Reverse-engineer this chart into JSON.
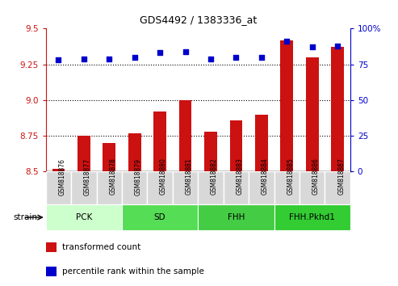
{
  "title": "GDS4492 / 1383336_at",
  "samples": [
    "GSM818876",
    "GSM818877",
    "GSM818878",
    "GSM818879",
    "GSM818880",
    "GSM818881",
    "GSM818882",
    "GSM818883",
    "GSM818884",
    "GSM818885",
    "GSM818886",
    "GSM818887"
  ],
  "red_values": [
    8.52,
    8.75,
    8.7,
    8.77,
    8.92,
    9.0,
    8.78,
    8.86,
    8.9,
    9.42,
    9.3,
    9.37
  ],
  "blue_values": [
    78,
    79,
    79,
    80,
    83,
    84,
    79,
    80,
    80,
    91,
    87,
    88
  ],
  "ylim_left": [
    8.5,
    9.5
  ],
  "ylim_right": [
    0,
    100
  ],
  "yticks_left": [
    8.5,
    8.75,
    9.0,
    9.25,
    9.5
  ],
  "yticks_right": [
    0,
    25,
    50,
    75,
    100
  ],
  "hlines": [
    8.75,
    9.0,
    9.25
  ],
  "group_defs": [
    {
      "label": "PCK",
      "start": 0,
      "end": 3,
      "color": "#ccffcc"
    },
    {
      "label": "SD",
      "start": 3,
      "end": 6,
      "color": "#55dd55"
    },
    {
      "label": "FHH",
      "start": 6,
      "end": 9,
      "color": "#44cc44"
    },
    {
      "label": "FHH.Pkhd1",
      "start": 9,
      "end": 12,
      "color": "#33cc33"
    }
  ],
  "strain_label": "strain",
  "legend_red": "transformed count",
  "legend_blue": "percentile rank within the sample",
  "bar_color": "#cc1111",
  "dot_color": "#0000cc",
  "bar_width": 0.5,
  "tick_label_color_left": "#cc1111",
  "tick_label_color_right": "#0000cc",
  "cell_color": "#d8d8d8",
  "cell_edge_color": "#ffffff"
}
